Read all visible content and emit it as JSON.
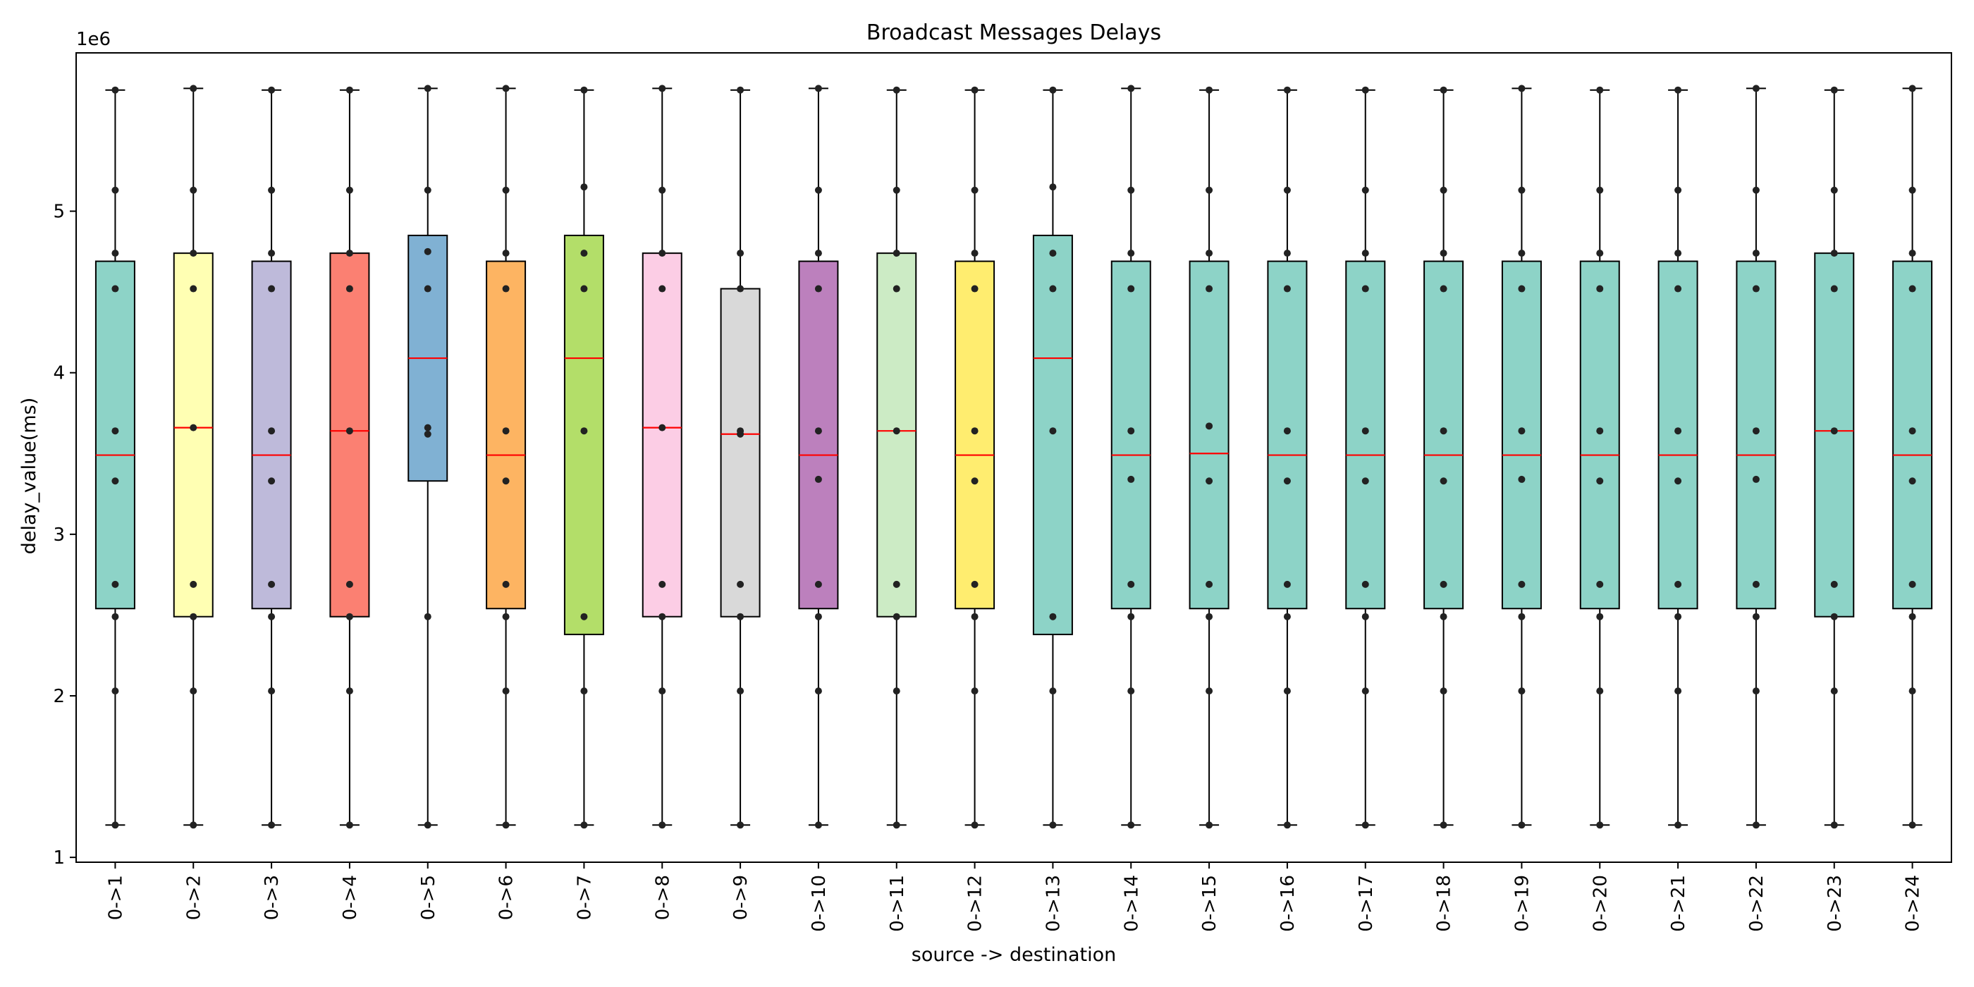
{
  "chart_data": {
    "type": "box",
    "title": "Broadcast Messages Delays",
    "xlabel": "source -> destination",
    "ylabel": "delay_value(ms)",
    "y_offset_text": "1e6",
    "y_scale": 1000000,
    "ylim": [
      0.97,
      5.98
    ],
    "yticks": [
      1,
      2,
      3,
      4,
      5
    ],
    "ytick_labels": [
      "1",
      "2",
      "3",
      "4",
      "5"
    ],
    "grid": false,
    "median_color": "#ff0000",
    "point_color": "#222222",
    "categories": [
      "0->1",
      "0->2",
      "0->3",
      "0->4",
      "0->5",
      "0->6",
      "0->7",
      "0->8",
      "0->9",
      "0->10",
      "0->11",
      "0->12",
      "0->13",
      "0->14",
      "0->15",
      "0->16",
      "0->17",
      "0->18",
      "0->19",
      "0->20",
      "0->21",
      "0->22",
      "0->23",
      "0->24"
    ],
    "colors": [
      "#8dd3c7",
      "#ffffb3",
      "#bebada",
      "#fb8072",
      "#80b1d3",
      "#fdb462",
      "#b3de69",
      "#fccde5",
      "#d9d9d9",
      "#bc80bd",
      "#ccebc5",
      "#ffed6f",
      "#8dd3c7",
      "#8dd3c7",
      "#8dd3c7",
      "#8dd3c7",
      "#8dd3c7",
      "#8dd3c7",
      "#8dd3c7",
      "#8dd3c7",
      "#8dd3c7",
      "#8dd3c7",
      "#8dd3c7",
      "#8dd3c7"
    ],
    "boxes": [
      {
        "min": 1.2,
        "q1": 2.54,
        "median": 3.49,
        "q3": 4.69,
        "max": 5.75,
        "points": [
          1.2,
          2.03,
          2.49,
          2.69,
          3.33,
          3.64,
          4.52,
          4.74,
          5.13,
          5.75
        ]
      },
      {
        "min": 1.2,
        "q1": 2.49,
        "median": 3.66,
        "q3": 4.74,
        "max": 5.76,
        "points": [
          1.2,
          2.03,
          2.49,
          2.69,
          3.66,
          4.52,
          4.74,
          5.13,
          5.76
        ]
      },
      {
        "min": 1.2,
        "q1": 2.54,
        "median": 3.49,
        "q3": 4.69,
        "max": 5.75,
        "points": [
          1.2,
          2.03,
          2.49,
          2.69,
          3.33,
          3.64,
          4.52,
          4.74,
          5.13,
          5.75
        ]
      },
      {
        "min": 1.2,
        "q1": 2.49,
        "median": 3.64,
        "q3": 4.74,
        "max": 5.75,
        "points": [
          1.2,
          2.03,
          2.49,
          2.69,
          3.64,
          4.52,
          4.74,
          5.13,
          5.75
        ]
      },
      {
        "min": 1.2,
        "q1": 3.33,
        "median": 4.09,
        "q3": 4.85,
        "max": 5.76,
        "points": [
          1.2,
          2.49,
          3.62,
          3.66,
          4.52,
          4.75,
          5.13,
          5.76
        ]
      },
      {
        "min": 1.2,
        "q1": 2.54,
        "median": 3.49,
        "q3": 4.69,
        "max": 5.76,
        "points": [
          1.2,
          2.03,
          2.49,
          2.69,
          3.33,
          3.64,
          4.52,
          4.74,
          5.13,
          5.76
        ]
      },
      {
        "min": 1.2,
        "q1": 2.38,
        "median": 4.09,
        "q3": 4.85,
        "max": 5.75,
        "points": [
          1.2,
          2.03,
          2.49,
          3.64,
          4.52,
          4.74,
          5.15,
          5.75
        ]
      },
      {
        "min": 1.2,
        "q1": 2.49,
        "median": 3.66,
        "q3": 4.74,
        "max": 5.76,
        "points": [
          1.2,
          2.03,
          2.49,
          2.69,
          3.66,
          4.52,
          4.74,
          5.13,
          5.76
        ]
      },
      {
        "min": 1.2,
        "q1": 2.49,
        "median": 3.62,
        "q3": 4.52,
        "max": 5.75,
        "points": [
          1.2,
          2.03,
          2.49,
          2.69,
          3.62,
          3.64,
          4.52,
          4.74,
          5.75
        ]
      },
      {
        "min": 1.2,
        "q1": 2.54,
        "median": 3.49,
        "q3": 4.69,
        "max": 5.76,
        "points": [
          1.2,
          2.03,
          2.49,
          2.69,
          3.34,
          3.64,
          4.52,
          4.74,
          5.13,
          5.76
        ]
      },
      {
        "min": 1.2,
        "q1": 2.49,
        "median": 3.64,
        "q3": 4.74,
        "max": 5.75,
        "points": [
          1.2,
          2.03,
          2.49,
          2.69,
          3.64,
          4.52,
          4.74,
          5.13,
          5.75
        ]
      },
      {
        "min": 1.2,
        "q1": 2.54,
        "median": 3.49,
        "q3": 4.69,
        "max": 5.75,
        "points": [
          1.2,
          2.03,
          2.49,
          2.69,
          3.33,
          3.64,
          4.52,
          4.74,
          5.13,
          5.75
        ]
      },
      {
        "min": 1.2,
        "q1": 2.38,
        "median": 4.09,
        "q3": 4.85,
        "max": 5.75,
        "points": [
          1.2,
          2.03,
          2.49,
          3.64,
          4.52,
          4.74,
          5.15,
          5.75
        ]
      },
      {
        "min": 1.2,
        "q1": 2.54,
        "median": 3.49,
        "q3": 4.69,
        "max": 5.76,
        "points": [
          1.2,
          2.03,
          2.49,
          2.69,
          3.34,
          3.64,
          4.52,
          4.74,
          5.13,
          5.76
        ]
      },
      {
        "min": 1.2,
        "q1": 2.54,
        "median": 3.5,
        "q3": 4.69,
        "max": 5.75,
        "points": [
          1.2,
          2.03,
          2.49,
          2.69,
          3.33,
          3.67,
          4.52,
          4.74,
          5.13,
          5.75
        ]
      },
      {
        "min": 1.2,
        "q1": 2.54,
        "median": 3.49,
        "q3": 4.69,
        "max": 5.75,
        "points": [
          1.2,
          2.03,
          2.49,
          2.69,
          3.33,
          3.64,
          4.52,
          4.74,
          5.13,
          5.75
        ]
      },
      {
        "min": 1.2,
        "q1": 2.54,
        "median": 3.49,
        "q3": 4.69,
        "max": 5.75,
        "points": [
          1.2,
          2.03,
          2.49,
          2.69,
          3.33,
          3.64,
          4.52,
          4.74,
          5.13,
          5.75
        ]
      },
      {
        "min": 1.2,
        "q1": 2.54,
        "median": 3.49,
        "q3": 4.69,
        "max": 5.75,
        "points": [
          1.2,
          2.03,
          2.49,
          2.69,
          3.33,
          3.64,
          4.52,
          4.74,
          5.13,
          5.75
        ]
      },
      {
        "min": 1.2,
        "q1": 2.54,
        "median": 3.49,
        "q3": 4.69,
        "max": 5.76,
        "points": [
          1.2,
          2.03,
          2.49,
          2.69,
          3.34,
          3.64,
          4.52,
          4.74,
          5.13,
          5.76
        ]
      },
      {
        "min": 1.2,
        "q1": 2.54,
        "median": 3.49,
        "q3": 4.69,
        "max": 5.75,
        "points": [
          1.2,
          2.03,
          2.49,
          2.69,
          3.33,
          3.64,
          4.52,
          4.74,
          5.13,
          5.75
        ]
      },
      {
        "min": 1.2,
        "q1": 2.54,
        "median": 3.49,
        "q3": 4.69,
        "max": 5.75,
        "points": [
          1.2,
          2.03,
          2.49,
          2.69,
          3.33,
          3.64,
          4.52,
          4.74,
          5.13,
          5.75
        ]
      },
      {
        "min": 1.2,
        "q1": 2.54,
        "median": 3.49,
        "q3": 4.69,
        "max": 5.76,
        "points": [
          1.2,
          2.03,
          2.49,
          2.69,
          3.34,
          3.64,
          4.52,
          4.74,
          5.13,
          5.76
        ]
      },
      {
        "min": 1.2,
        "q1": 2.49,
        "median": 3.64,
        "q3": 4.74,
        "max": 5.75,
        "points": [
          1.2,
          2.03,
          2.49,
          2.69,
          3.64,
          4.52,
          4.74,
          5.13,
          5.75
        ]
      },
      {
        "min": 1.2,
        "q1": 2.54,
        "median": 3.49,
        "q3": 4.69,
        "max": 5.76,
        "points": [
          1.2,
          2.03,
          2.49,
          2.69,
          3.33,
          3.64,
          4.52,
          4.74,
          5.13,
          5.76
        ]
      }
    ]
  }
}
